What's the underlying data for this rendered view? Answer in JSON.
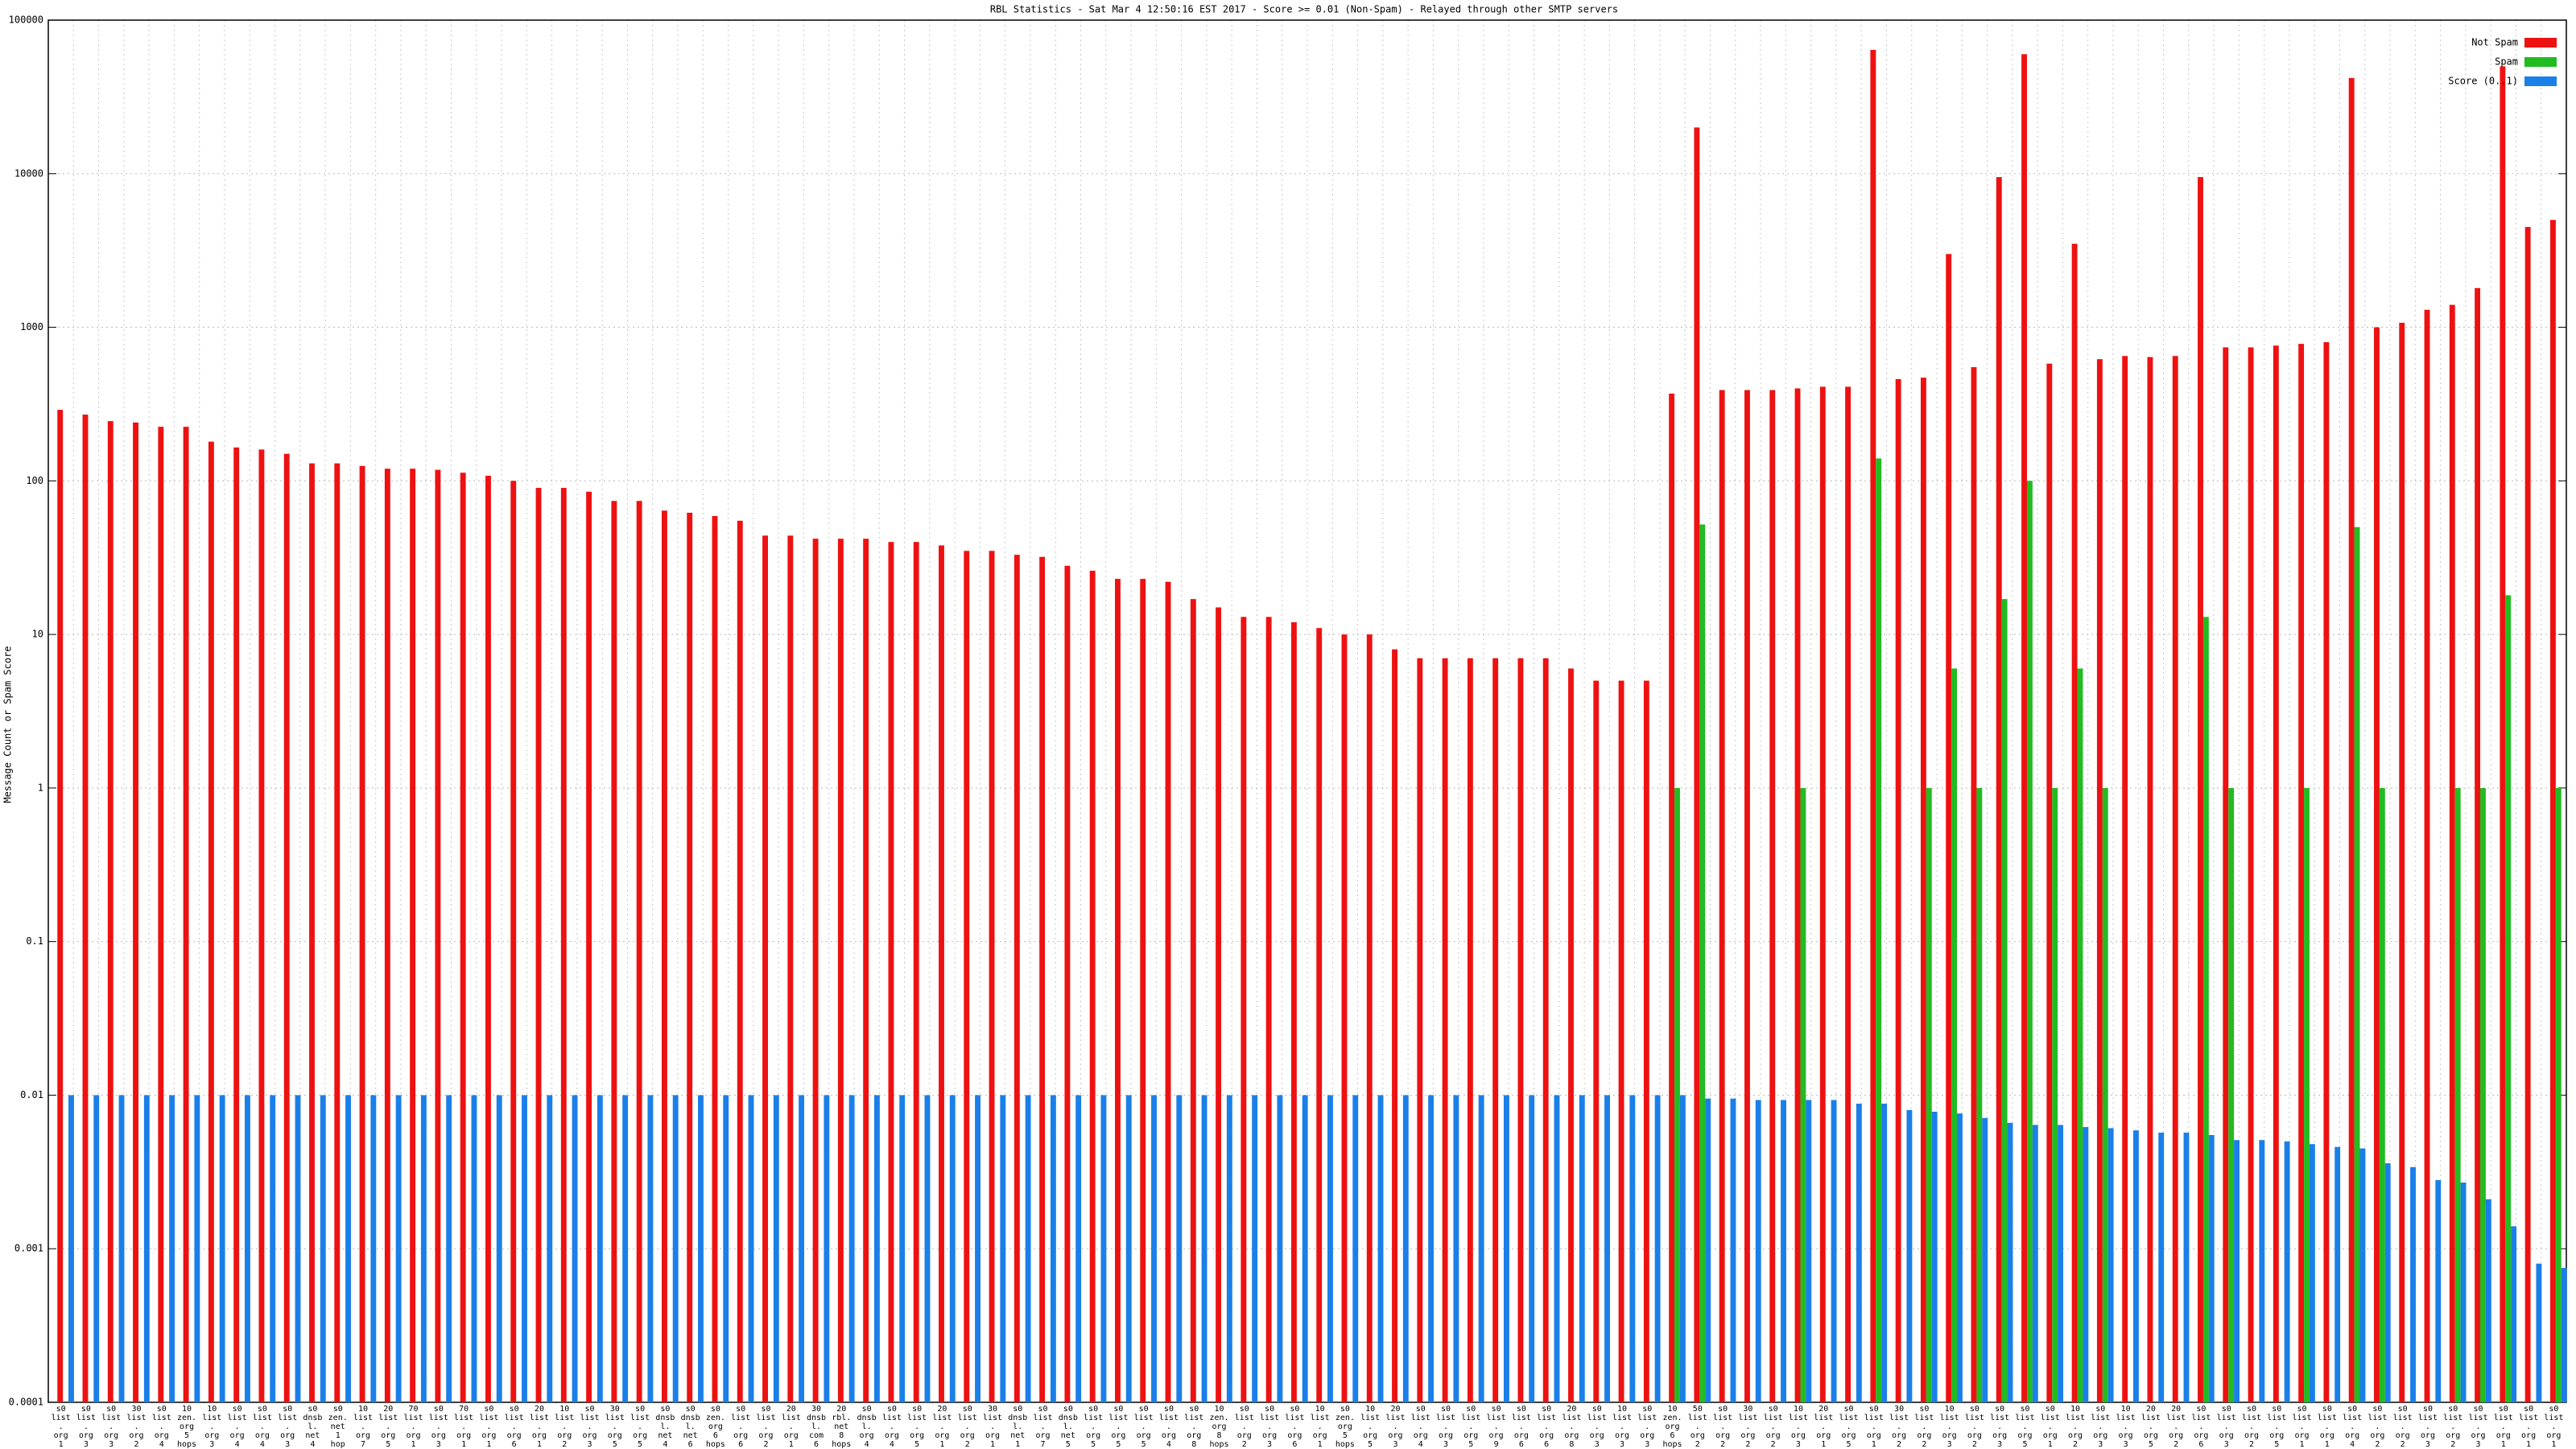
{
  "chart_data": {
    "type": "bar",
    "title": "RBL Statistics - Sat Mar 4 12:50:16 EST 2017 - Score >= 0.01 (Non-Spam) - Relayed through other SMTP servers",
    "y_label": "Message Count or Spam Score",
    "log_scale": true,
    "grid": true,
    "legend": "top-right",
    "ylim": [
      0.0001,
      100000
    ],
    "yticks": [
      0.0001,
      0.001,
      0.01,
      0.1,
      1,
      10,
      100,
      1000,
      10000,
      100000
    ],
    "categories": [
      "s0 list. org 1 hop",
      "s0 list. org 3 hops",
      "s0 list. org 3 hops",
      "30 list. org 2 hops",
      "s0 list. org 4 hops",
      "10 zen. org 5 hops",
      "10 list. org 3 hops",
      "s0 list. org 4 hops",
      "s0 list. org 4 hops",
      "s0 list. org 3 hops",
      "s0 dnsbl. net 4 hops",
      "s0 zen. net 1 hop",
      "10 list. org 7 hops",
      "20 list. org 5 hops",
      "70 list. org 1 hop",
      "s0 list. org 3 hops",
      "70 list. org 1 hop",
      "s0 list. org 1 hop",
      "s0 list. org 6 hops",
      "20 list. org 1 hop",
      "10 list. org 2 hops",
      "s0 list. org 3 hops",
      "30 list. org 5 hops",
      "s0 list. org 5 hops",
      "s0 dnsbl. net 4 hops",
      "s0 dnsbl. net 6 hops",
      "s0 zen. org 6 hops",
      "s0 list. org 6 hops",
      "s0 list. org 2 hops",
      "20 list. org 1 hop",
      "30 dnsbl. com 6 hops",
      "20 rbl. net 8 hops",
      "s0 dnsbl. org 4 hops",
      "s0 list. org 4 hops",
      "s0 list. org 5 hops",
      "20 list. org 1 hop",
      "s0 list. org 2 hops",
      "30 list. org 1 hop",
      "s0 dnsbl. net 1 hop",
      "s0 list. org 7 hops",
      "s0 dnsbl. net 5 hops",
      "s0 list. org 5 hops",
      "s0 list. org 5 hops",
      "s0 list. org 5 hops",
      "s0 list. org 4 hops",
      "s0 list. org 8 hops",
      "10 zen. org 8 hops",
      "s0 list. org 2 hops",
      "s0 list. org 3 hops",
      "s0 list. org 6 hops",
      "10 list. org 1 hop",
      "s0 zen. org 5 hops",
      "10 list. org 5 hops",
      "20 list. org 3 hops",
      "s0 list. org 4 hops",
      "s0 list. org 3 hops",
      "s0 list. org 5 hops",
      "s0 list. org 9 hops",
      "s0 list. org 6 hops",
      "s0 list. org 6 hops",
      "20 list. org 8 hops",
      "s0 list. org 3 hops",
      "10 list. org 3 hops",
      "s0 list. org 3 hops",
      "10 zen. org 6 hops",
      "50 list. org 2 hops",
      "s0 list. org 2 hops",
      "30 list. org 2 hops",
      "s0 list. org 2 hops",
      "10 list. org 3 hops",
      "20 list. org 1 hop",
      "s0 list. org 5 hops",
      "s0 list. org 1 hop",
      "30 list. org 2 hops",
      "s0 list. org 2 hops",
      "10 list. org 3 hops",
      "s0 list. org 2 hops",
      "s0 list. org 3 hops",
      "s0 list. org 5 hops",
      "s0 list. org 1 hop",
      "10 list. org 2 hops",
      "s0 list. org 3 hops",
      "10 list. org 3 hops",
      "20 list. org 5 hops",
      "20 list. org 2 hops",
      "s0 list. org 6 hops",
      "s0 list. org 3 hops",
      "s0 list. org 2 hops",
      "s0 list. org 5 hops",
      "s0 list. org 1 hop",
      "s0 list. org 1 hop",
      "s0 list. org 4 hops",
      "s0 list. org 2 hops",
      "s0 list. org 2 hops",
      "s0 list. org 3 hops",
      "s0 list. org 2 hops",
      "s0 list. org 3 hops",
      "s0 list. org 1 hop",
      "s0 list. org 1 hop",
      "s0 list. org 1 hop"
    ],
    "series": [
      {
        "name": "Not Spam",
        "color": "#ee1111",
        "values": [
          290,
          270,
          245,
          240,
          225,
          225,
          180,
          165,
          160,
          150,
          130,
          130,
          125,
          120,
          120,
          118,
          113,
          108,
          100,
          90,
          90,
          85,
          74,
          74,
          64,
          62,
          59,
          55,
          44,
          44,
          42,
          42,
          42,
          40,
          40,
          38,
          35,
          35,
          33,
          32,
          28,
          26,
          23,
          23,
          22,
          17,
          15,
          13,
          13,
          12,
          11,
          10,
          10,
          8,
          7,
          7,
          7,
          7,
          7,
          7,
          6,
          5,
          5,
          5,
          370,
          20000,
          390,
          390,
          390,
          400,
          410,
          410,
          64000,
          460,
          470,
          3000,
          550,
          9500,
          60000,
          580,
          3500,
          620,
          650,
          640,
          650,
          9500,
          740,
          740,
          760,
          780,
          800,
          42000,
          1000,
          1070,
          1300,
          1400,
          1800,
          50000,
          4500,
          5000
        ]
      },
      {
        "name": "Spam",
        "color": "#22bb22",
        "values": [
          null,
          null,
          null,
          null,
          null,
          null,
          null,
          null,
          null,
          null,
          null,
          null,
          null,
          null,
          null,
          null,
          null,
          null,
          null,
          null,
          null,
          null,
          null,
          null,
          null,
          null,
          null,
          null,
          null,
          null,
          null,
          null,
          null,
          null,
          null,
          null,
          null,
          null,
          null,
          null,
          null,
          null,
          null,
          null,
          null,
          null,
          null,
          null,
          null,
          null,
          null,
          null,
          null,
          null,
          null,
          null,
          null,
          null,
          null,
          null,
          null,
          null,
          null,
          null,
          1,
          52,
          null,
          null,
          null,
          1,
          null,
          null,
          140,
          null,
          1,
          6,
          1,
          17,
          100,
          1,
          6,
          1,
          null,
          null,
          null,
          13,
          1,
          null,
          null,
          1,
          null,
          50,
          1,
          null,
          null,
          1,
          1,
          18,
          null,
          1
        ]
      },
      {
        "name": "Score (0..1)",
        "color": "#1a7fe8",
        "values": [
          0.01,
          0.01,
          0.01,
          0.01,
          0.01,
          0.01,
          0.01,
          0.01,
          0.01,
          0.01,
          0.01,
          0.01,
          0.01,
          0.01,
          0.01,
          0.01,
          0.01,
          0.01,
          0.01,
          0.01,
          0.01,
          0.01,
          0.01,
          0.01,
          0.01,
          0.01,
          0.01,
          0.01,
          0.01,
          0.01,
          0.01,
          0.01,
          0.01,
          0.01,
          0.01,
          0.01,
          0.01,
          0.01,
          0.01,
          0.01,
          0.01,
          0.01,
          0.01,
          0.01,
          0.01,
          0.01,
          0.01,
          0.01,
          0.01,
          0.01,
          0.01,
          0.01,
          0.01,
          0.01,
          0.01,
          0.01,
          0.01,
          0.01,
          0.01,
          0.01,
          0.01,
          0.01,
          0.01,
          0.01,
          0.01,
          0.0095,
          0.0095,
          0.0093,
          0.0093,
          0.0093,
          0.0093,
          0.0088,
          0.0088,
          0.008,
          0.0078,
          0.0076,
          0.0071,
          0.0066,
          0.0064,
          0.0064,
          0.0062,
          0.0061,
          0.0059,
          0.0057,
          0.0057,
          0.0055,
          0.0051,
          0.0051,
          0.005,
          0.0048,
          0.0046,
          0.0045,
          0.0036,
          0.0034,
          0.0028,
          0.0027,
          0.0021,
          0.0014,
          0.0008,
          0.00075
        ]
      }
    ]
  }
}
